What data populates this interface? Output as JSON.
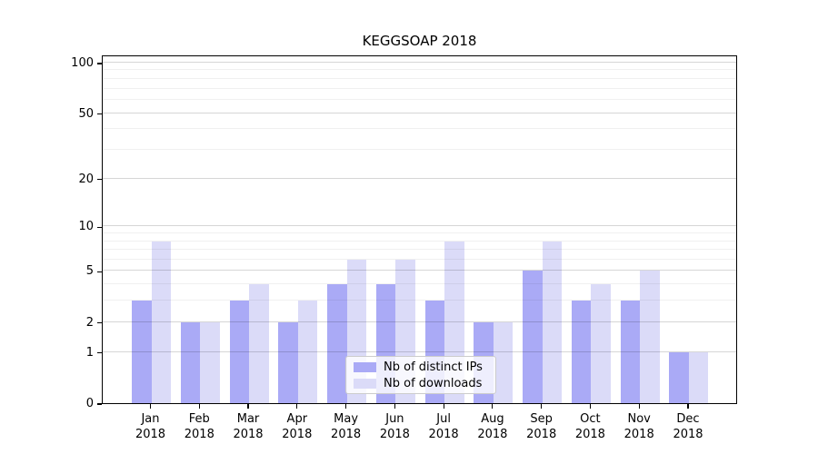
{
  "title": "KEGGSOAP 2018",
  "chart_data": {
    "type": "bar",
    "title": "KEGGSOAP 2018",
    "categories": [
      "Jan 2018",
      "Feb 2018",
      "Mar 2018",
      "Apr 2018",
      "May 2018",
      "Jun 2018",
      "Jul 2018",
      "Aug 2018",
      "Sep 2018",
      "Oct 2018",
      "Nov 2018",
      "Dec 2018"
    ],
    "category_lines": [
      {
        "month": "Jan",
        "year": "2018"
      },
      {
        "month": "Feb",
        "year": "2018"
      },
      {
        "month": "Mar",
        "year": "2018"
      },
      {
        "month": "Apr",
        "year": "2018"
      },
      {
        "month": "May",
        "year": "2018"
      },
      {
        "month": "Jun",
        "year": "2018"
      },
      {
        "month": "Jul",
        "year": "2018"
      },
      {
        "month": "Aug",
        "year": "2018"
      },
      {
        "month": "Sep",
        "year": "2018"
      },
      {
        "month": "Oct",
        "year": "2018"
      },
      {
        "month": "Nov",
        "year": "2018"
      },
      {
        "month": "Dec",
        "year": "2018"
      }
    ],
    "series": [
      {
        "name": "Nb of distinct IPs",
        "color": "#aaaaf6",
        "values": [
          3,
          2,
          3,
          2,
          4,
          4,
          3,
          2,
          5,
          3,
          3,
          1
        ]
      },
      {
        "name": "Nb of downloads",
        "color": "#dbdbf8",
        "values": [
          8,
          2,
          4,
          3,
          6,
          6,
          8,
          2,
          8,
          4,
          5,
          1
        ]
      }
    ],
    "xlabel": "",
    "ylabel": "",
    "yscale": "log1p",
    "ylim": [
      0,
      112
    ],
    "ytick_values": [
      0,
      1,
      2,
      5,
      10,
      20,
      50,
      100
    ],
    "ytick_minor_values": [
      3,
      4,
      6,
      7,
      8,
      9,
      30,
      40,
      60,
      70,
      80,
      90
    ],
    "grid": true,
    "grid_on_top": true,
    "legend_position": "lower center"
  }
}
